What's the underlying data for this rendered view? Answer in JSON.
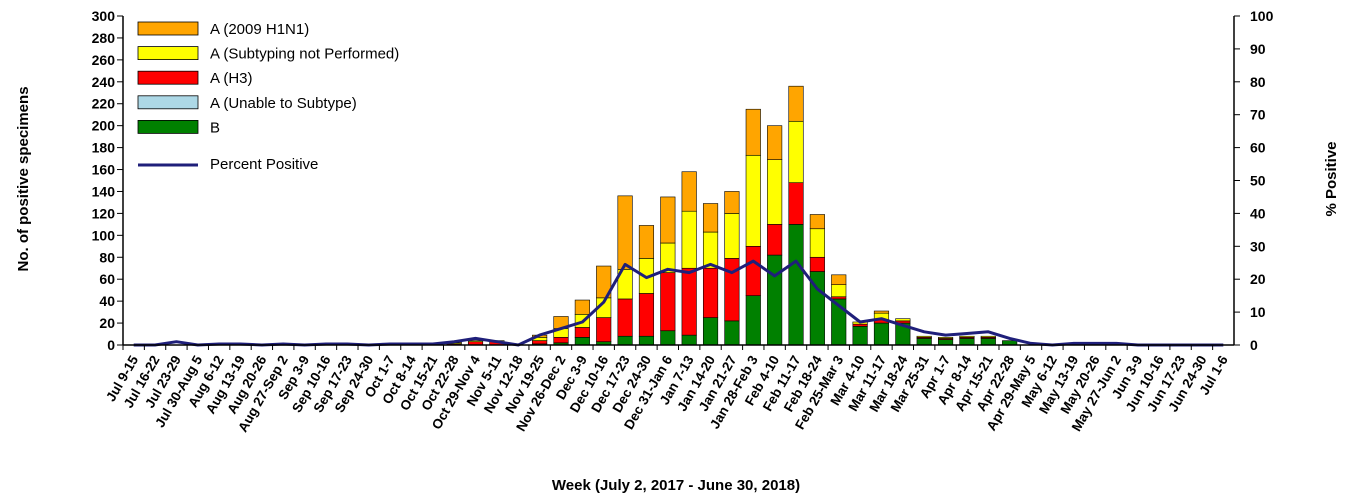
{
  "chart_data": {
    "type": "bar",
    "stacked": true,
    "xlabel": "Week (July 2, 2017 - June 30, 2018)",
    "ylabel": "No. of positive specimens",
    "y2label": "% Positive",
    "ylim": [
      0,
      300
    ],
    "y2lim": [
      0,
      100
    ],
    "yticks": [
      "0",
      "20",
      "40",
      "60",
      "80",
      "100",
      "120",
      "140",
      "160",
      "180",
      "200",
      "220",
      "240",
      "260",
      "280",
      "300"
    ],
    "y2ticks": [
      "0",
      "10",
      "20",
      "30",
      "40",
      "50",
      "60",
      "70",
      "80",
      "90",
      "100"
    ],
    "legend_position": "top-left",
    "categories": [
      "Jul 9-15",
      "Jul 16-22",
      "Jul 23-29",
      "Jul 30-Aug 5",
      "Aug 6-12",
      "Aug 13-19",
      "Aug 20-26",
      "Aug 27-Sep 2",
      "Sep 3-9",
      "Sep 10-16",
      "Sep 17-23",
      "Sep 24-30",
      "Oct 1-7",
      "Oct 8-14",
      "Oct 15-21",
      "Oct 22-28",
      "Oct 29-Nov 4",
      "Nov 5-11",
      "Nov 12-18",
      "Nov 19-25",
      "Nov 26-Dec 2",
      "Dec 3-9",
      "Dec 10-16",
      "Dec 17-23",
      "Dec 24-30",
      "Dec 31-Jan 6",
      "Jan 7-13",
      "Jan 14-20",
      "Jan 21-27",
      "Jan 28-Feb 3",
      "Feb 4-10",
      "Feb 11-17",
      "Feb 18-24",
      "Feb 25-Mar 3",
      "Mar 4-10",
      "Mar 11-17",
      "Mar 18-24",
      "Mar 25-31",
      "Apr 1-7",
      "Apr 8-14",
      "Apr 15-21",
      "Apr 22-28",
      "Apr 29-May 5",
      "May 6-12",
      "May 13-19",
      "May 20-26",
      "May 27-Jun 2",
      "Jun 3-9",
      "Jun 10-16",
      "Jun 17-23",
      "Jun 24-30",
      "Jul 1-6"
    ],
    "series": [
      {
        "name": "B",
        "color": "#008000",
        "axis": "left",
        "values": [
          0,
          0,
          0,
          0,
          0,
          0,
          0,
          0,
          0,
          0,
          0,
          0,
          0,
          0,
          0,
          0,
          0,
          0,
          0,
          1,
          2,
          7,
          3,
          8,
          8,
          13,
          9,
          25,
          22,
          45,
          82,
          110,
          67,
          42,
          17,
          20,
          20,
          6,
          5,
          6,
          6,
          4,
          0,
          0,
          0,
          0,
          0,
          0,
          0,
          0,
          0,
          0
        ]
      },
      {
        "name": "A (Unable to Subtype)",
        "color": "#add8e6",
        "axis": "left",
        "values": [
          0,
          0,
          0,
          0,
          0,
          0,
          0,
          0,
          0,
          0,
          0,
          0,
          0,
          0,
          0,
          0,
          0,
          0,
          0,
          0,
          0,
          0,
          0,
          0,
          0,
          0,
          0,
          0,
          0,
          0,
          0,
          0,
          0,
          0,
          0,
          0,
          0,
          0,
          0,
          0,
          0,
          0,
          0,
          0,
          0,
          0,
          0,
          0,
          0,
          0,
          0,
          0
        ]
      },
      {
        "name": "A (H3)",
        "color": "#ff0000",
        "axis": "left",
        "values": [
          0,
          0,
          0,
          0,
          0,
          0,
          0,
          0,
          0,
          0,
          0,
          0,
          0,
          0,
          0,
          1,
          3,
          3,
          0,
          3,
          5,
          9,
          22,
          34,
          39,
          53,
          61,
          45,
          57,
          45,
          28,
          38,
          13,
          2,
          2,
          3,
          2,
          1,
          1,
          1,
          1,
          0,
          0,
          0,
          0,
          0,
          0,
          0,
          0,
          0,
          0,
          0
        ]
      },
      {
        "name": "A (Subtyping not Performed)",
        "color": "#ffff00",
        "axis": "left",
        "values": [
          0,
          0,
          0,
          0,
          0,
          0,
          0,
          0,
          0,
          0,
          0,
          0,
          0,
          0,
          0,
          1,
          1,
          1,
          0,
          3,
          8,
          12,
          18,
          27,
          32,
          27,
          52,
          33,
          41,
          83,
          59,
          56,
          26,
          11,
          2,
          6,
          2,
          1,
          1,
          1,
          1,
          0,
          0,
          0,
          0,
          0,
          0,
          0,
          0,
          0,
          0,
          0
        ]
      },
      {
        "name": "A (2009 H1N1)",
        "color": "#ffa500",
        "axis": "left",
        "values": [
          0,
          0,
          0,
          0,
          0,
          0,
          0,
          0,
          0,
          0,
          0,
          0,
          0,
          0,
          0,
          1,
          0,
          0,
          0,
          2,
          11,
          13,
          29,
          67,
          30,
          42,
          36,
          26,
          20,
          42,
          31,
          32,
          13,
          9,
          0,
          2,
          0,
          0,
          0,
          0,
          0,
          0,
          0,
          0,
          0,
          0,
          0,
          0,
          0,
          0,
          0,
          0
        ]
      },
      {
        "name": "Percent Positive",
        "color": "#1f1f7a",
        "axis": "right",
        "type": "line",
        "values": [
          0,
          0,
          1,
          0,
          0.3,
          0.3,
          0,
          0.3,
          0,
          0.3,
          0.3,
          0,
          0.3,
          0.3,
          0.3,
          1,
          2,
          1,
          0,
          3,
          5,
          7,
          13,
          24.5,
          20.5,
          23,
          22,
          24.5,
          22,
          25.5,
          21,
          25.5,
          17,
          12,
          7,
          8,
          6,
          4,
          3,
          3.5,
          4,
          2,
          0.5,
          0,
          0.5,
          0.5,
          0.5,
          0,
          0,
          0,
          0,
          0
        ]
      }
    ]
  }
}
